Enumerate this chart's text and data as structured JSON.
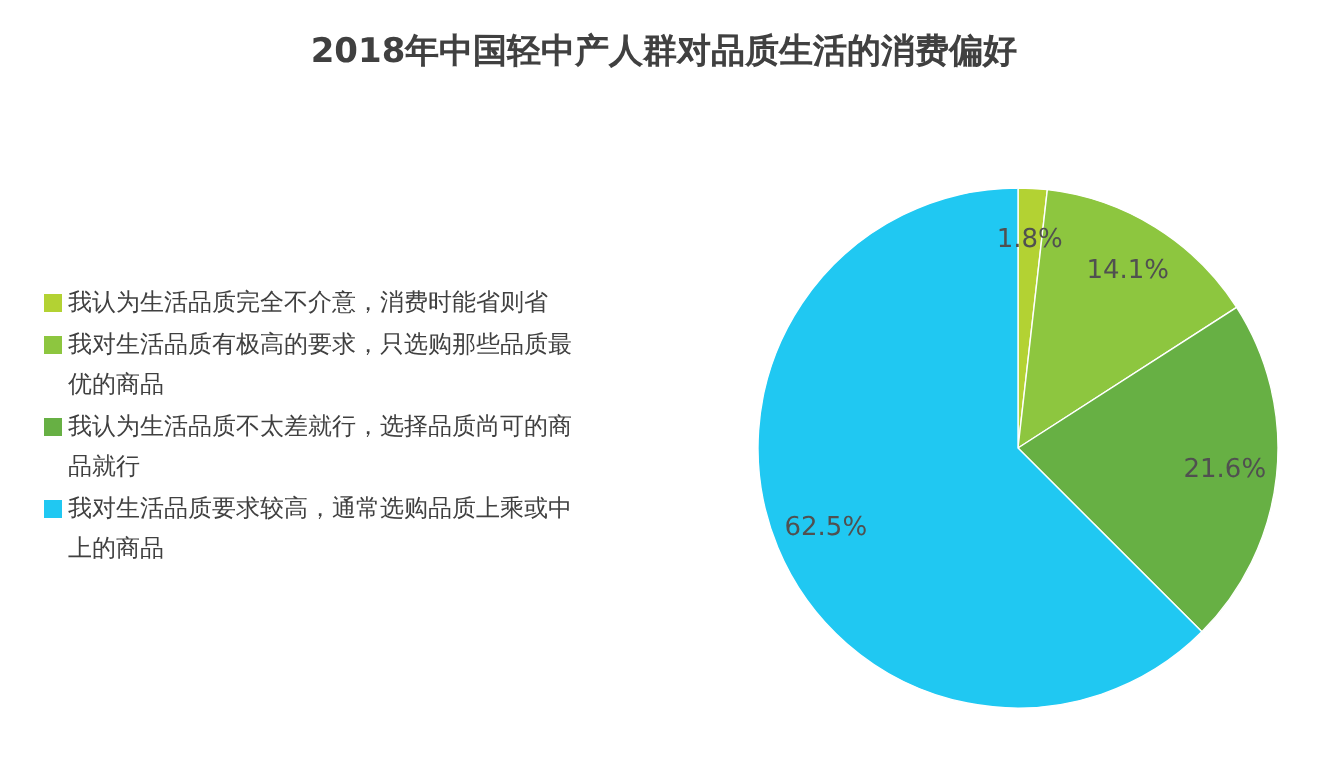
{
  "chart_data": {
    "type": "pie",
    "title": "2018年中国轻中产人群对品质生活的消费偏好",
    "categories": [
      "我认为生活品质完全不介意，消费时能省则省",
      "我对生活品质有极高的要求，只选购那些品质最优的商品",
      "我认为生活品质不太差就行，选择品质尚可的商品就行",
      "我对生活品质要求较高，通常选购品质上乘或中上的商品"
    ],
    "values": [
      1.8,
      14.1,
      21.6,
      62.5
    ],
    "value_labels": [
      "1.8%",
      "14.1%",
      "21.6%",
      "62.5%"
    ],
    "colors": [
      "#b3d233",
      "#8dc63f",
      "#67b044",
      "#20c8f2"
    ],
    "legend": "left"
  }
}
